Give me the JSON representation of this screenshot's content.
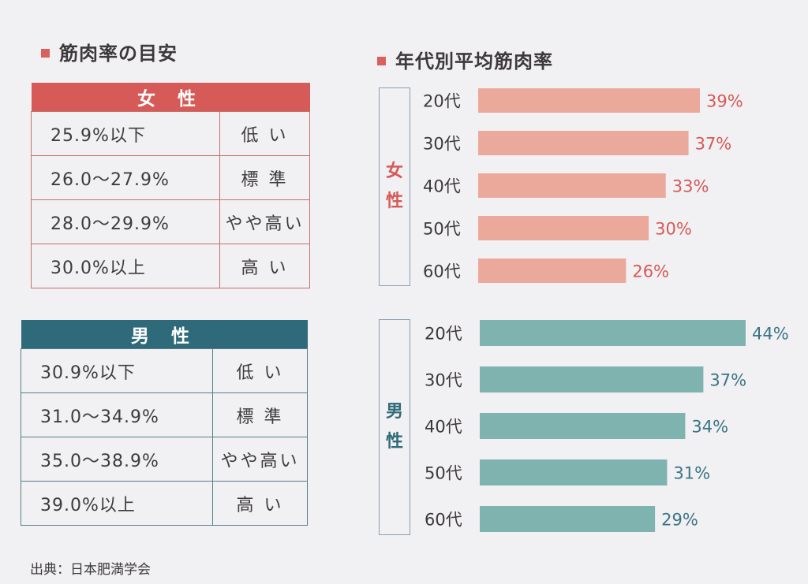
{
  "left": {
    "title": "筋肉率の目安",
    "female": {
      "header": "女 性",
      "rows": [
        {
          "range": "25.9%以下",
          "level": "低 い"
        },
        {
          "range": "26.0〜27.9%",
          "level": "標 準"
        },
        {
          "range": "28.0〜29.9%",
          "level": "やや高い"
        },
        {
          "range": "30.0%以上",
          "level": "高 い"
        }
      ]
    },
    "male": {
      "header": "男 性",
      "rows": [
        {
          "range": "30.9%以下",
          "level": "低 い"
        },
        {
          "range": "31.0〜34.9%",
          "level": "標 準"
        },
        {
          "range": "35.0〜38.9%",
          "level": "やや高い"
        },
        {
          "range": "39.0%以上",
          "level": "高 い"
        }
      ]
    }
  },
  "right": {
    "title": "年代別平均筋肉率",
    "female_label": [
      "女",
      "性"
    ],
    "male_label": [
      "男",
      "性"
    ]
  },
  "source": "出典：日本肥満学会",
  "colors": {
    "female_header": "#d65a57",
    "male_header": "#2f6a7a",
    "female_bar": "#eba99b",
    "male_bar": "#7fb3b0",
    "female_text": "#d65a57",
    "male_text": "#3b7585"
  },
  "chart_data": [
    {
      "type": "bar",
      "orientation": "horizontal",
      "categories": [
        "20代",
        "30代",
        "40代",
        "50代",
        "60代"
      ],
      "values": [
        39,
        37,
        33,
        30,
        26
      ],
      "value_labels": [
        "39%",
        "37%",
        "33%",
        "30%",
        "26%"
      ]
    },
    {
      "type": "bar",
      "orientation": "horizontal",
      "categories": [
        "20代",
        "30代",
        "40代",
        "50代",
        "60代"
      ],
      "values": [
        44,
        37,
        34,
        31,
        29
      ],
      "value_labels": [
        "44%",
        "37%",
        "34%",
        "31%",
        "29%"
      ]
    }
  ]
}
